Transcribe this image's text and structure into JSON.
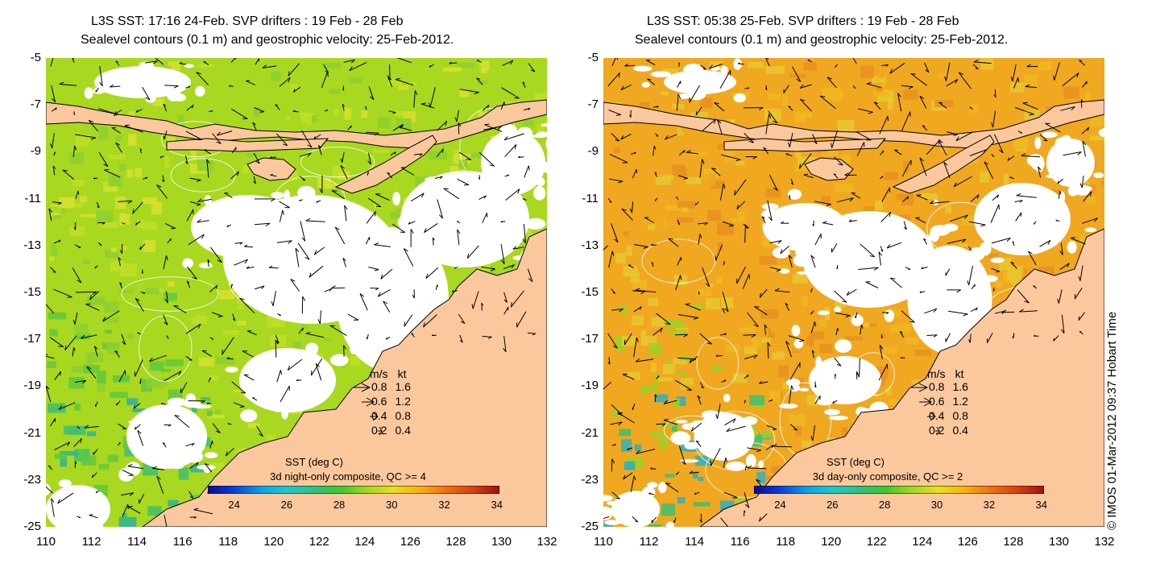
{
  "colors": {
    "land": "#fbc89e",
    "cloud": "#ffffff",
    "coast": "#000000",
    "vector": "#000000",
    "contour": "#ffffff"
  },
  "x_ticks": [
    "110",
    "112",
    "114",
    "116",
    "118",
    "120",
    "122",
    "124",
    "126",
    "128",
    "130",
    "132"
  ],
  "y_ticks": [
    "-5",
    "-7",
    "-9",
    "-11",
    "-13",
    "-15",
    "-17",
    "-19",
    "-21",
    "-23",
    "-25"
  ],
  "colorbar": {
    "ticks": [
      "24",
      "26",
      "28",
      "30",
      "32",
      "34"
    ],
    "colormap": [
      "#0a0a8c",
      "#0a40d8",
      "#10a0e8",
      "#20c8c8",
      "#30c080",
      "#40c830",
      "#a0d820",
      "#e8e020",
      "#f8b010",
      "#f07010",
      "#d84010",
      "#a01010"
    ]
  },
  "legend": {
    "header_ms": "m/s",
    "header_kt": "kt",
    "rows": [
      {
        "ms": "0.8",
        "kt": "1.6"
      },
      {
        "ms": "0.6",
        "kt": "1.2"
      },
      {
        "ms": "0.4",
        "kt": "0.8"
      },
      {
        "ms": "0.2",
        "kt": "0.4"
      }
    ]
  },
  "panels": [
    {
      "title_line1": "L3S SST: 17:16 24-Feb. SVP drifters : 19 Feb - 28 Feb",
      "title_line2": "Sealevel contours (0.1 m) and geostrophic velocity: 25-Feb-2012.",
      "sst_label": "SST (deg C)",
      "composite": "3d night-only composite, QC >= 4",
      "sea_colors": [
        "#a8d820",
        "#c0e028",
        "#d8e030",
        "#8cd030",
        "#60c840",
        "#40c070",
        "#30b0a0"
      ]
    },
    {
      "title_line1": "L3S SST: 05:38 25-Feb. SVP drifters : 19 Feb - 28 Feb",
      "title_line2": "Sealevel contours (0.1 m) and geostrophic velocity: 25-Feb-2012.",
      "sst_label": "SST (deg C)",
      "composite": "3d day-only composite, QC >= 2",
      "sea_colors": [
        "#f0a820",
        "#f0b820",
        "#e89020",
        "#e8c830",
        "#a0d028",
        "#40c070",
        "#30b0c0"
      ]
    }
  ],
  "credit": "© IMOS 01-Mar-2012 09:37 Hobart Time"
}
